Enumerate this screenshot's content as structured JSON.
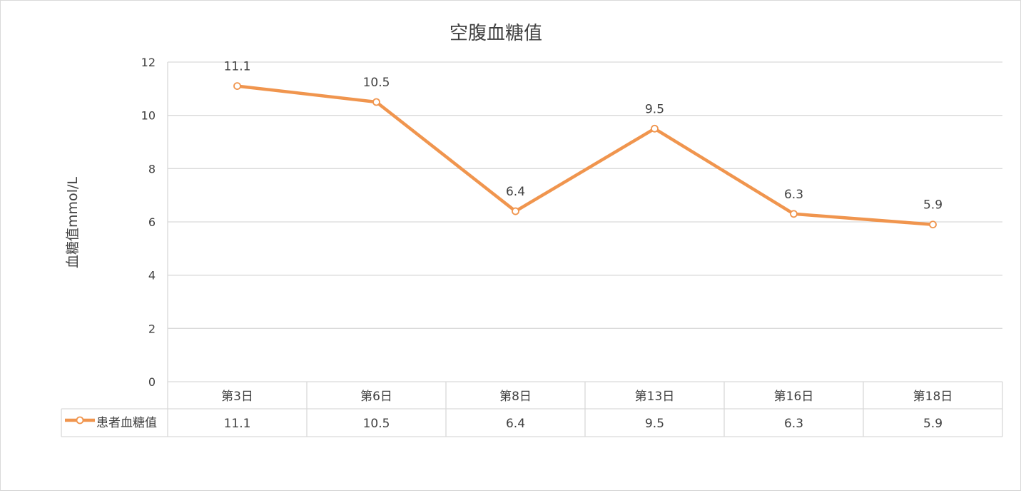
{
  "chart_data": {
    "type": "line",
    "title": "空腹血糖值",
    "xlabel": "",
    "ylabel": "血糖值mmol/L",
    "categories": [
      "第3日",
      "第6日",
      "第8日",
      "第13日",
      "第16日",
      "第18日"
    ],
    "series": [
      {
        "name": "患者血糖值",
        "values": [
          11.1,
          10.5,
          6.4,
          9.5,
          6.3,
          5.9
        ],
        "color": "#F0954E"
      }
    ],
    "ylim": [
      0,
      12
    ],
    "yticks": [
      0,
      2,
      4,
      6,
      8,
      10,
      12
    ],
    "grid": true,
    "legend": "data-table",
    "data_labels": true
  },
  "colors": {
    "series": "#F0954E",
    "grid": "#d9d9d9",
    "text": "#404040",
    "title": "#404040"
  }
}
